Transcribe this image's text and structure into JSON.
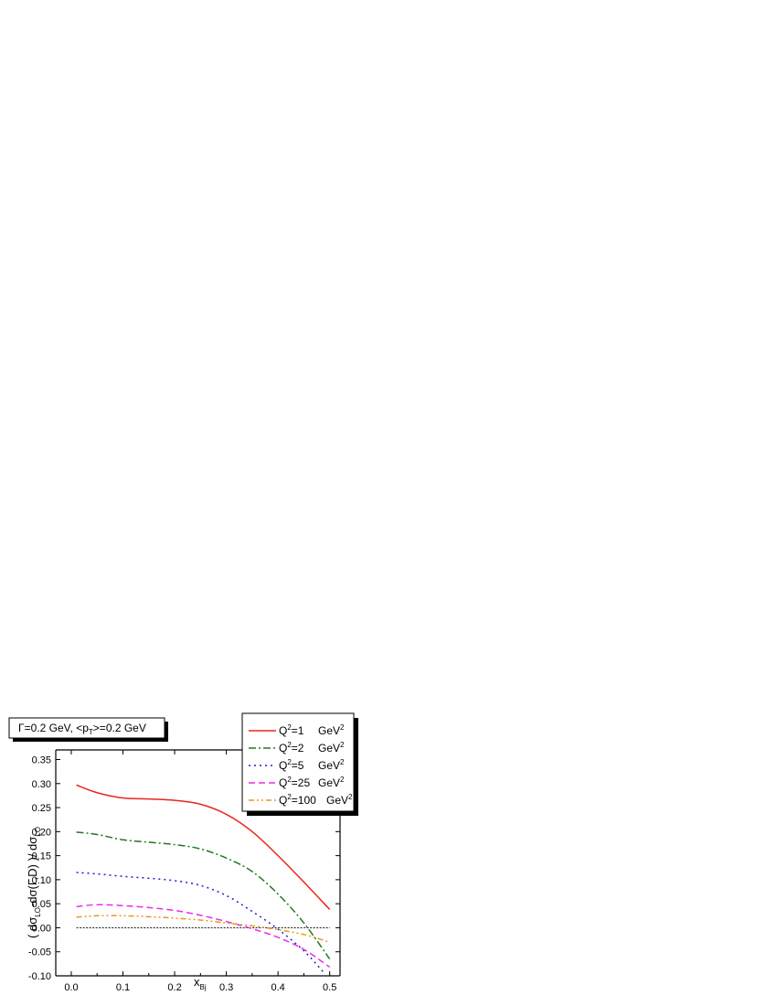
{
  "chart_data": {
    "type": "line",
    "annotation": "Γ=0.2 GeV, <p_T>=0.2 GeV",
    "xlabel": "x_Bj",
    "ylabel": "( dσ_LO-dσ(Γ,D) )/ dσ_LO",
    "xlim": [
      -0.03,
      0.52
    ],
    "ylim": [
      -0.1,
      0.37
    ],
    "x_ticks": [
      "0.0",
      "0.1",
      "0.2",
      "0.3",
      "0.4",
      "0.5"
    ],
    "y_ticks": [
      "-0.10",
      "-0.05",
      "0.00",
      "0.05",
      "0.10",
      "0.15",
      "0.20",
      "0.25",
      "0.30",
      "0.35"
    ],
    "reference_line": 0.0,
    "legend_position": "top-right",
    "grid": false,
    "series": [
      {
        "name": "Q²=1 GeV²",
        "q2": "1",
        "color": "#e8261c",
        "dash": "solid",
        "x": [
          0.01,
          0.05,
          0.1,
          0.15,
          0.2,
          0.25,
          0.3,
          0.35,
          0.4,
          0.45,
          0.5
        ],
        "y": [
          0.297,
          0.281,
          0.27,
          0.268,
          0.265,
          0.257,
          0.236,
          0.2,
          0.15,
          0.095,
          0.038
        ]
      },
      {
        "name": "Q²=2 GeV²",
        "q2": "2",
        "color": "#1f7a1f",
        "dash": "dashdot",
        "x": [
          0.01,
          0.05,
          0.1,
          0.15,
          0.2,
          0.25,
          0.3,
          0.35,
          0.4,
          0.45,
          0.5
        ],
        "y": [
          0.199,
          0.194,
          0.183,
          0.178,
          0.173,
          0.164,
          0.145,
          0.117,
          0.07,
          0.01,
          -0.065
        ]
      },
      {
        "name": "Q²=5 GeV²",
        "q2": "5",
        "color": "#1f1fd1",
        "dash": "dot",
        "x": [
          0.01,
          0.05,
          0.1,
          0.15,
          0.2,
          0.25,
          0.3,
          0.35,
          0.4,
          0.45,
          0.49
        ],
        "y": [
          0.115,
          0.112,
          0.107,
          0.103,
          0.098,
          0.088,
          0.067,
          0.034,
          -0.003,
          -0.048,
          -0.095
        ]
      },
      {
        "name": "Q²=25 GeV²",
        "q2": "25",
        "color": "#e82ee8",
        "dash": "dash",
        "x": [
          0.01,
          0.05,
          0.1,
          0.15,
          0.2,
          0.25,
          0.3,
          0.35,
          0.4,
          0.45,
          0.5
        ],
        "y": [
          0.044,
          0.048,
          0.046,
          0.042,
          0.036,
          0.026,
          0.013,
          -0.002,
          -0.02,
          -0.045,
          -0.082
        ]
      },
      {
        "name": "Q²=100 GeV²",
        "q2": "100",
        "color": "#e89a1c",
        "dash": "dashdotdot",
        "x": [
          0.01,
          0.05,
          0.1,
          0.15,
          0.2,
          0.25,
          0.3,
          0.35,
          0.4,
          0.45,
          0.5
        ],
        "y": [
          0.022,
          0.025,
          0.025,
          0.023,
          0.02,
          0.016,
          0.01,
          0.004,
          -0.004,
          -0.014,
          -0.03
        ]
      }
    ]
  },
  "legend_unit": "GeV",
  "legend_prefix": "Q",
  "sup2": "2"
}
